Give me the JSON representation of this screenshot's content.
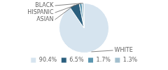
{
  "chart_data": {
    "type": "pie",
    "categories": [
      "WHITE",
      "ASIAN",
      "HISPANIC",
      "BLACK"
    ],
    "values": [
      90.4,
      6.5,
      1.7,
      1.3
    ],
    "value_labels": [
      "90.4%",
      "6.5%",
      "1.7%",
      "1.3%"
    ],
    "colors": [
      "#d6e4ef",
      "#2b5f7e",
      "#5a96b0",
      "#a2bfce"
    ],
    "legend": "bottom"
  }
}
